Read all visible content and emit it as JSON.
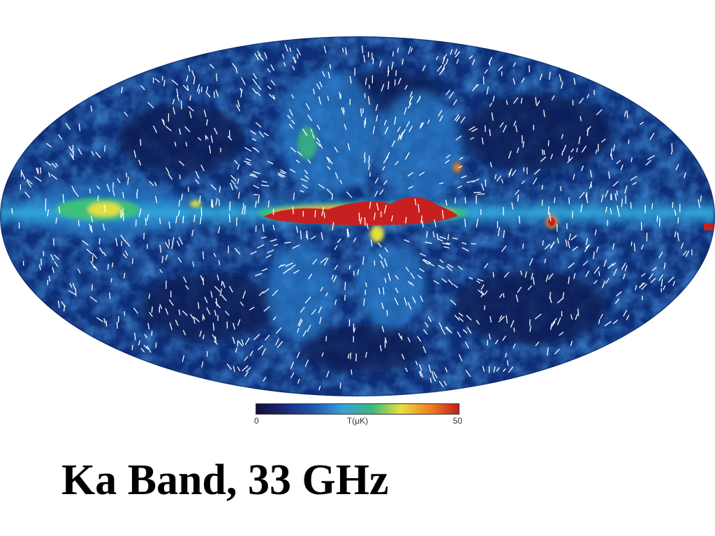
{
  "title": "Ka Band, 33 GHz",
  "colorbar": {
    "min_label": "0",
    "unit_label": "T(μK)",
    "max_label": "50",
    "colors": [
      "#14103a",
      "#1a2a7a",
      "#2058b0",
      "#3aa0d8",
      "#3cb878",
      "#e8e040",
      "#f08020",
      "#c02020"
    ]
  },
  "map": {
    "projection": "mollweide",
    "features": [
      "galactic-plane-emission",
      "polarization-vectors"
    ]
  }
}
